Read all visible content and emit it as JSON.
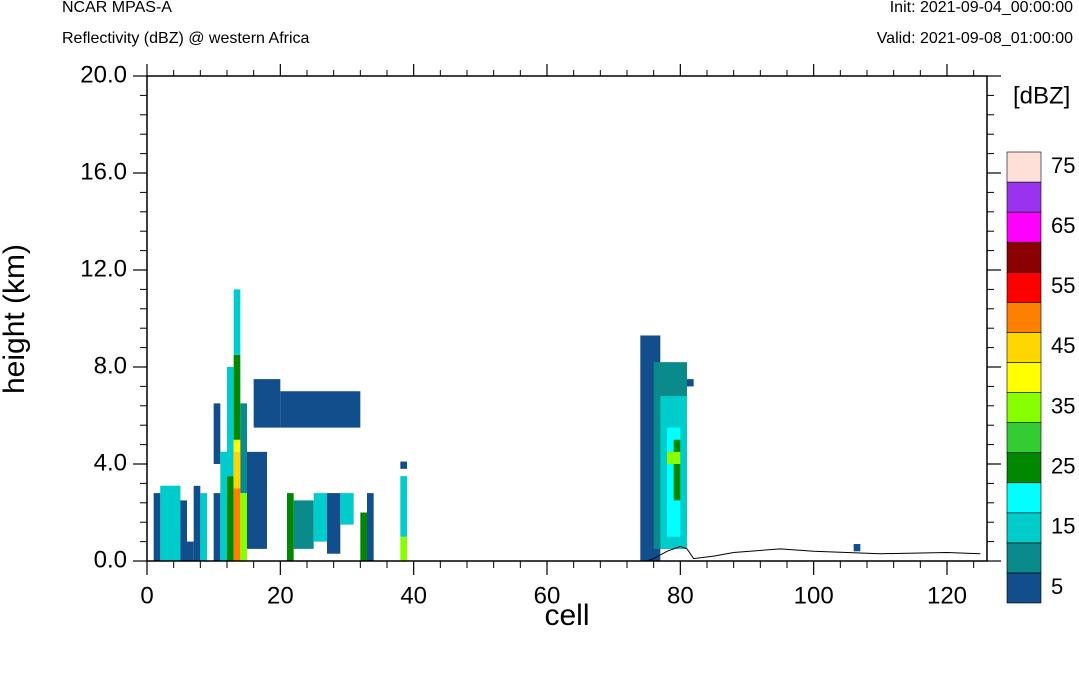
{
  "header": {
    "model": "NCAR MPAS-A",
    "subtitle": "Reflectivity (dBZ) @ western Africa",
    "init": "Init: 2021-09-04_00:00:00",
    "valid": "Valid: 2021-09-08_01:00:00"
  },
  "chart_data": {
    "type": "heatmap",
    "title": "Reflectivity (dBZ) @ western Africa",
    "xlabel": "cell",
    "ylabel": "height (km)",
    "xlim": [
      0,
      126
    ],
    "ylim": [
      0,
      20
    ],
    "x_ticks": [
      "0",
      "20",
      "40",
      "60",
      "80",
      "100",
      "120"
    ],
    "y_ticks": [
      "0.0",
      "4.0",
      "8.0",
      "12.0",
      "16.0",
      "20.0"
    ],
    "units": "[dBZ]",
    "colorbar_labels": [
      "5",
      "15",
      "25",
      "35",
      "45",
      "55",
      "65",
      "75"
    ],
    "levels": [
      5,
      10,
      15,
      20,
      25,
      30,
      35,
      40,
      45,
      50,
      55,
      60,
      65,
      70,
      75
    ],
    "colors": [
      "#124d8c",
      "#0a8a8a",
      "#00cccc",
      "#00ffff",
      "#008800",
      "#33cc33",
      "#88ff00",
      "#ffff00",
      "#ffd700",
      "#ff8000",
      "#ff0000",
      "#8b0000",
      "#ff00ff",
      "#9933ee",
      "#ffe0d9"
    ],
    "cells": [
      {
        "x0": 1,
        "x1": 2,
        "y0": 0,
        "y1": 2.8,
        "v": 5
      },
      {
        "x0": 2,
        "x1": 5,
        "y0": 0,
        "y1": 3.1,
        "v": 15
      },
      {
        "x0": 2,
        "x1": 5,
        "y0": 2.5,
        "y1": 3.1,
        "v": 15
      },
      {
        "x0": 5,
        "x1": 6,
        "y0": 0,
        "y1": 2.5,
        "v": 5
      },
      {
        "x0": 6,
        "x1": 7,
        "y0": 0,
        "y1": 0.8,
        "v": 5
      },
      {
        "x0": 7,
        "x1": 8,
        "y0": 0,
        "y1": 3.1,
        "v": 5
      },
      {
        "x0": 8,
        "x1": 9,
        "y0": 0,
        "y1": 2.8,
        "v": 15
      },
      {
        "x0": 10,
        "x1": 11,
        "y0": 0,
        "y1": 2.8,
        "v": 5
      },
      {
        "x0": 10,
        "x1": 11,
        "y0": 4.0,
        "y1": 6.5,
        "v": 5
      },
      {
        "x0": 11,
        "x1": 12,
        "y0": 0,
        "y1": 4.5,
        "v": 15
      },
      {
        "x0": 12,
        "x1": 13,
        "y0": 0,
        "y1": 3.5,
        "v": 25
      },
      {
        "x0": 12,
        "x1": 13,
        "y0": 3.5,
        "y1": 8.0,
        "v": 15
      },
      {
        "x0": 13,
        "x1": 14,
        "y0": 0,
        "y1": 3.0,
        "v": 50
      },
      {
        "x0": 13,
        "x1": 14,
        "y0": 3.0,
        "y1": 4.5,
        "v": 45
      },
      {
        "x0": 13,
        "x1": 14,
        "y0": 4.5,
        "y1": 5.0,
        "v": 40
      },
      {
        "x0": 13,
        "x1": 14,
        "y0": 5.0,
        "y1": 8.5,
        "v": 25
      },
      {
        "x0": 13,
        "x1": 14,
        "y0": 8.5,
        "y1": 11.2,
        "v": 15
      },
      {
        "x0": 14,
        "x1": 15,
        "y0": 0,
        "y1": 2.8,
        "v": 35
      },
      {
        "x0": 14,
        "x1": 15,
        "y0": 2.8,
        "y1": 6.5,
        "v": 10
      },
      {
        "x0": 15,
        "x1": 18,
        "y0": 0.5,
        "y1": 4.5,
        "v": 5
      },
      {
        "x0": 16,
        "x1": 20,
        "y0": 5.5,
        "y1": 7.5,
        "v": 5
      },
      {
        "x0": 20,
        "x1": 32,
        "y0": 5.5,
        "y1": 7.0,
        "v": 5
      },
      {
        "x0": 21,
        "x1": 22,
        "y0": 0,
        "y1": 2.8,
        "v": 25
      },
      {
        "x0": 22,
        "x1": 25,
        "y0": 0.5,
        "y1": 2.5,
        "v": 10
      },
      {
        "x0": 25,
        "x1": 27,
        "y0": 0.8,
        "y1": 2.8,
        "v": 15
      },
      {
        "x0": 27,
        "x1": 29,
        "y0": 0.3,
        "y1": 2.8,
        "v": 5
      },
      {
        "x0": 29,
        "x1": 31,
        "y0": 1.5,
        "y1": 2.8,
        "v": 15
      },
      {
        "x0": 32,
        "x1": 33,
        "y0": 0,
        "y1": 2.0,
        "v": 25
      },
      {
        "x0": 33,
        "x1": 34,
        "y0": 0,
        "y1": 2.8,
        "v": 5
      },
      {
        "x0": 38,
        "x1": 39,
        "y0": 0,
        "y1": 1.0,
        "v": 35
      },
      {
        "x0": 38,
        "x1": 39,
        "y0": 1.0,
        "y1": 3.5,
        "v": 15
      },
      {
        "x0": 38,
        "x1": 39,
        "y0": 3.8,
        "y1": 4.1,
        "v": 5
      },
      {
        "x0": 74,
        "x1": 77,
        "y0": 0,
        "y1": 9.3,
        "v": 5
      },
      {
        "x0": 76,
        "x1": 81,
        "y0": 0.5,
        "y1": 8.2,
        "v": 10
      },
      {
        "x0": 77,
        "x1": 81,
        "y0": 0.5,
        "y1": 6.8,
        "v": 15
      },
      {
        "x0": 78,
        "x1": 80,
        "y0": 1.0,
        "y1": 5.5,
        "v": 20
      },
      {
        "x0": 79,
        "x1": 80,
        "y0": 2.5,
        "y1": 5.0,
        "v": 25
      },
      {
        "x0": 78,
        "x1": 80,
        "y0": 4.0,
        "y1": 4.5,
        "v": 35
      },
      {
        "x0": 81,
        "x1": 82,
        "y0": 7.2,
        "y1": 7.5,
        "v": 5
      },
      {
        "x0": 106,
        "x1": 107,
        "y0": 0.4,
        "y1": 0.7,
        "v": 5
      }
    ],
    "terrain": [
      [
        0,
        0
      ],
      [
        75,
        0
      ],
      [
        76,
        0.1
      ],
      [
        78,
        0.4
      ],
      [
        80,
        0.6
      ],
      [
        81,
        0.5
      ],
      [
        82,
        0.1
      ],
      [
        85,
        0.2
      ],
      [
        88,
        0.35
      ],
      [
        95,
        0.5
      ],
      [
        100,
        0.4
      ],
      [
        110,
        0.3
      ],
      [
        120,
        0.35
      ],
      [
        125,
        0.3
      ]
    ]
  }
}
